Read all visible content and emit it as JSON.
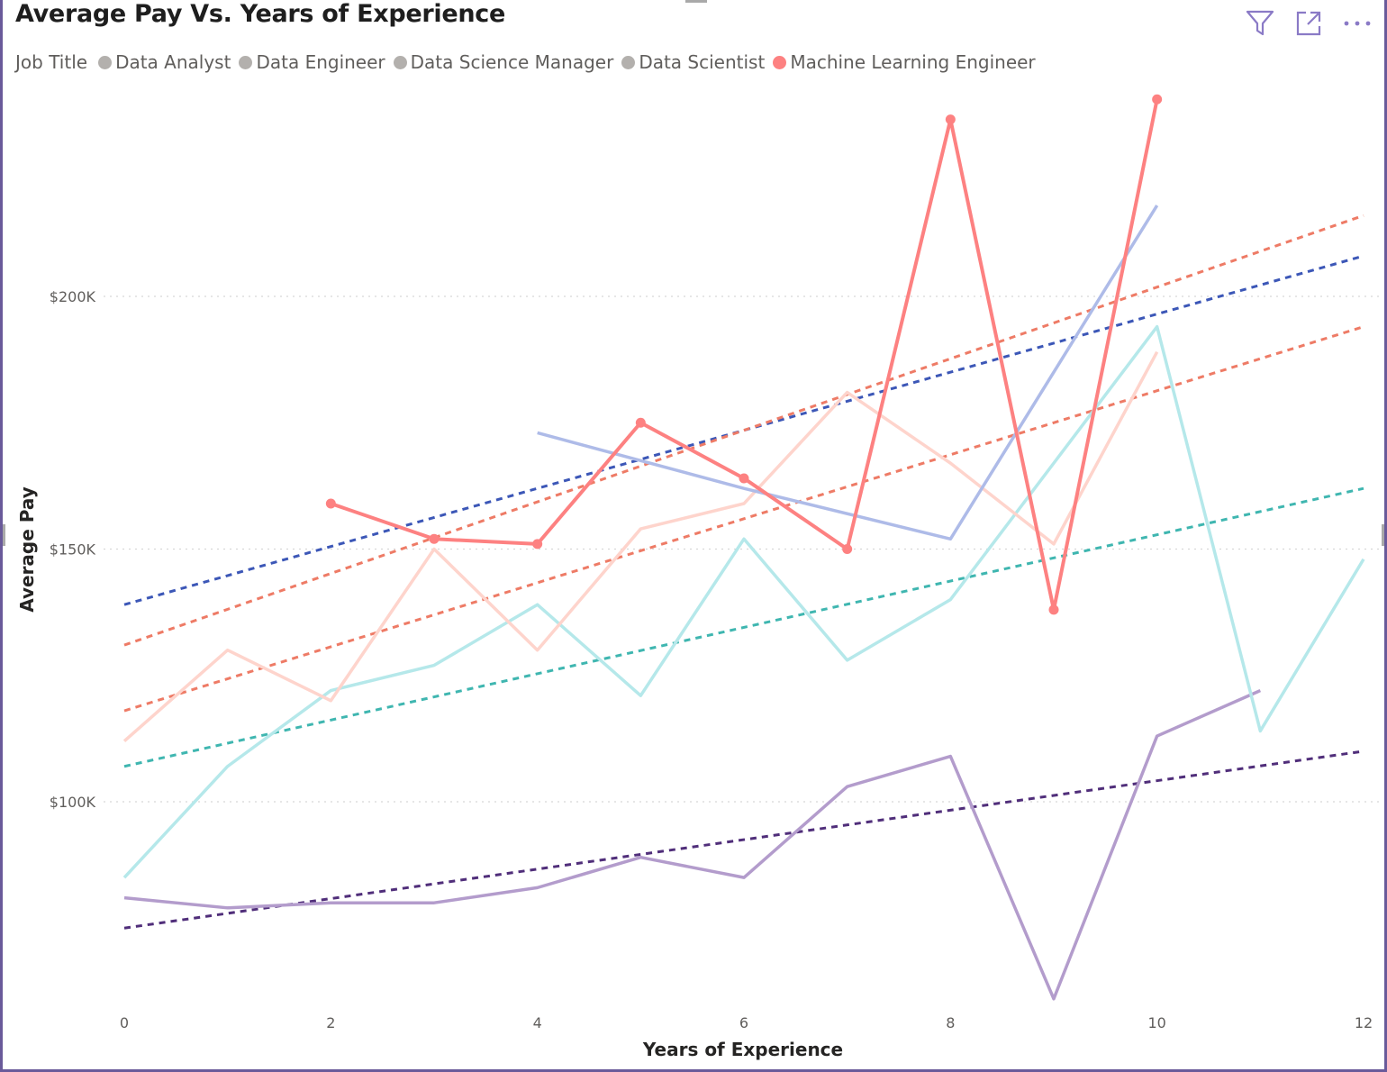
{
  "visual": {
    "title": "Average Pay Vs. Years of Experience",
    "icons": [
      "filter-icon",
      "focus-mode-icon",
      "more-options-icon"
    ]
  },
  "legend": {
    "title": "Job Title",
    "items": [
      {
        "label": "Data Analyst",
        "color": "#b3b0ad"
      },
      {
        "label": "Data Engineer",
        "color": "#b3b0ad"
      },
      {
        "label": "Data Science Manager",
        "color": "#b3b0ad"
      },
      {
        "label": "Data Scientist",
        "color": "#b3b0ad"
      },
      {
        "label": "Machine Learning Engineer",
        "color": "#fd8181"
      }
    ]
  },
  "chart_data": {
    "type": "line",
    "title": "Average Pay Vs. Years of Experience",
    "xlabel": "Years of Experience",
    "ylabel": "Average Pay",
    "xlim": [
      0,
      12
    ],
    "ylim": [
      60000,
      240000
    ],
    "x_ticks": [
      "0",
      "2",
      "4",
      "6",
      "8",
      "10",
      "12"
    ],
    "y_ticks": [
      {
        "value": 100000,
        "label": "$100K"
      },
      {
        "value": 150000,
        "label": "$150K"
      },
      {
        "value": 200000,
        "label": "$200K"
      }
    ],
    "grid": "horizontal dotted",
    "series": [
      {
        "color": "#b39ccc",
        "points": [
          [
            0,
            81000
          ],
          [
            1,
            79000
          ],
          [
            2,
            80000
          ],
          [
            3,
            80000
          ],
          [
            4,
            83000
          ],
          [
            5,
            89000
          ],
          [
            6,
            85000
          ],
          [
            7,
            103000
          ],
          [
            8,
            109000
          ],
          [
            9,
            61000
          ],
          [
            10,
            113000
          ],
          [
            11,
            122000
          ]
        ]
      },
      {
        "color": "#b5e8ea",
        "points": [
          [
            0,
            85000
          ],
          [
            1,
            107000
          ],
          [
            2,
            122000
          ],
          [
            3,
            127000
          ],
          [
            4,
            139000
          ],
          [
            5,
            121000
          ],
          [
            6,
            152000
          ],
          [
            7,
            128000
          ],
          [
            8,
            140000
          ],
          [
            9,
            167000
          ],
          [
            10,
            194000
          ],
          [
            11,
            114000
          ],
          [
            12,
            148000
          ]
        ]
      },
      {
        "color": "#fed4cc",
        "points": [
          [
            0,
            112000
          ],
          [
            1,
            130000
          ],
          [
            2,
            120000
          ],
          [
            3,
            150000
          ],
          [
            4,
            130000
          ],
          [
            5,
            154000
          ],
          [
            6,
            159000
          ],
          [
            7,
            181000
          ],
          [
            8,
            167000
          ],
          [
            9,
            151000
          ],
          [
            10,
            189000
          ]
        ]
      },
      {
        "color": "#aebbe8",
        "points": [
          [
            4,
            173000
          ],
          [
            6,
            162000
          ],
          [
            8,
            152000
          ],
          [
            10,
            218000
          ]
        ]
      },
      {
        "color": "#fd8181",
        "markers": true,
        "points": [
          [
            2,
            159000
          ],
          [
            3,
            152000
          ],
          [
            4,
            151000
          ],
          [
            5,
            175000
          ],
          [
            6,
            164000
          ],
          [
            7,
            150000
          ],
          [
            8,
            235000
          ],
          [
            9,
            138000
          ],
          [
            10,
            239000
          ]
        ]
      }
    ],
    "trend_lines": [
      {
        "color": "#3c57b7",
        "points": [
          [
            0,
            139000
          ],
          [
            12,
            208000
          ]
        ]
      },
      {
        "color": "#ee7b66",
        "points": [
          [
            0,
            131000
          ],
          [
            12,
            216000
          ]
        ]
      },
      {
        "color": "#ee7b66",
        "points": [
          [
            0,
            118000
          ],
          [
            12,
            194000
          ]
        ]
      },
      {
        "color": "#3fb6b0",
        "points": [
          [
            0,
            107000
          ],
          [
            12,
            162000
          ]
        ]
      },
      {
        "color": "#502e7a",
        "points": [
          [
            0,
            75000
          ],
          [
            12,
            110000
          ]
        ]
      }
    ]
  }
}
